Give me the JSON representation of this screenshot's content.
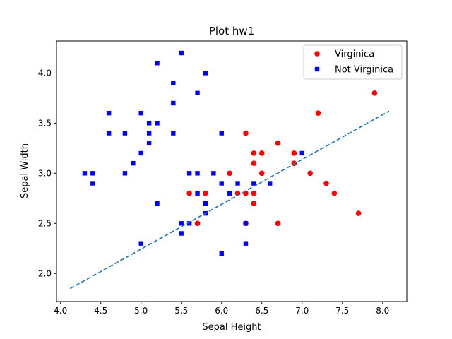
{
  "chart_data": {
    "type": "scatter",
    "title": "Plot hw1",
    "xlabel": "Sepal Height",
    "ylabel": "Sepal Width",
    "xlim": [
      3.95,
      8.3
    ],
    "ylim": [
      1.72,
      4.32
    ],
    "xticks": [
      "4.0",
      "4.5",
      "5.0",
      "5.5",
      "6.0",
      "6.5",
      "7.0",
      "7.5",
      "8.0"
    ],
    "yticks": [
      "2.0",
      "2.5",
      "3.0",
      "3.5",
      "4.0"
    ],
    "grid": false,
    "legend_position": "top-right",
    "series": [
      {
        "name": "Virginica",
        "color": "#ff0000",
        "marker": "circle",
        "points": [
          [
            7.9,
            3.8
          ],
          [
            7.2,
            3.6
          ],
          [
            6.3,
            3.4
          ],
          [
            6.7,
            3.3
          ],
          [
            6.4,
            3.2
          ],
          [
            6.5,
            3.2
          ],
          [
            6.9,
            3.2
          ],
          [
            6.4,
            3.1
          ],
          [
            6.9,
            3.1
          ],
          [
            6.1,
            3.0
          ],
          [
            6.5,
            3.0
          ],
          [
            7.1,
            3.0
          ],
          [
            7.3,
            2.9
          ],
          [
            5.6,
            2.8
          ],
          [
            5.8,
            2.8
          ],
          [
            6.2,
            2.8
          ],
          [
            6.3,
            2.8
          ],
          [
            6.4,
            2.8
          ],
          [
            7.4,
            2.8
          ],
          [
            6.4,
            2.7
          ],
          [
            7.7,
            2.6
          ],
          [
            5.7,
            2.5
          ],
          [
            6.3,
            2.5
          ],
          [
            6.7,
            2.5
          ]
        ]
      },
      {
        "name": "Not Virginica",
        "color": "#0000ff",
        "marker": "square",
        "points": [
          [
            5.5,
            4.2
          ],
          [
            5.2,
            4.1
          ],
          [
            5.8,
            4.0
          ],
          [
            5.4,
            3.9
          ],
          [
            5.7,
            3.8
          ],
          [
            5.4,
            3.7
          ],
          [
            4.6,
            3.6
          ],
          [
            5.0,
            3.6
          ],
          [
            5.1,
            3.5
          ],
          [
            5.2,
            3.5
          ],
          [
            4.6,
            3.4
          ],
          [
            4.8,
            3.4
          ],
          [
            5.1,
            3.4
          ],
          [
            5.4,
            3.4
          ],
          [
            6.0,
            3.4
          ],
          [
            5.1,
            3.3
          ],
          [
            5.0,
            3.2
          ],
          [
            7.0,
            3.2
          ],
          [
            4.9,
            3.1
          ],
          [
            4.3,
            3.0
          ],
          [
            4.4,
            3.0
          ],
          [
            4.8,
            3.0
          ],
          [
            5.6,
            3.0
          ],
          [
            5.7,
            3.0
          ],
          [
            5.9,
            3.0
          ],
          [
            4.4,
            2.9
          ],
          [
            6.0,
            2.9
          ],
          [
            6.4,
            2.9
          ],
          [
            6.6,
            2.9
          ],
          [
            5.2,
            2.7
          ],
          [
            5.7,
            2.8
          ],
          [
            6.1,
            2.8
          ],
          [
            5.8,
            2.7
          ],
          [
            5.8,
            2.6
          ],
          [
            6.2,
            2.9
          ],
          [
            5.5,
            2.5
          ],
          [
            5.6,
            2.5
          ],
          [
            6.3,
            2.5
          ],
          [
            5.5,
            2.4
          ],
          [
            5.0,
            2.3
          ],
          [
            6.3,
            2.3
          ],
          [
            6.0,
            2.2
          ]
        ]
      }
    ],
    "line": {
      "style": "dashed",
      "color": "#1f77b4",
      "x": [
        4.12,
        8.08
      ],
      "y": [
        1.85,
        3.62
      ]
    }
  }
}
